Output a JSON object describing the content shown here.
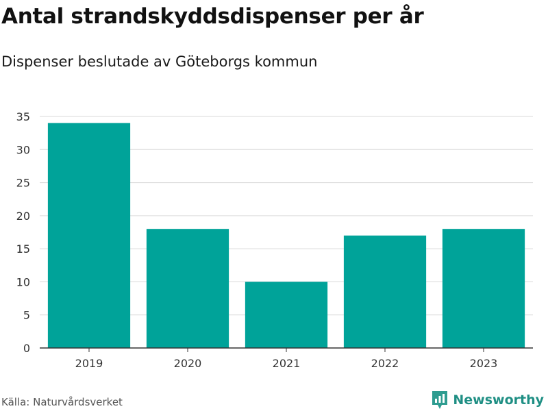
{
  "title": "Antal strandskyddsdispenser per år",
  "subtitle": "Dispenser beslutade av Göteborgs kommun",
  "source": "Källa: Naturvårdsverket",
  "brand": "Newsworthy",
  "colors": {
    "bar": "#00a399",
    "grid": "#d9d9d9",
    "axis": "#333333",
    "brand": "#1f8f84"
  },
  "chart_data": {
    "type": "bar",
    "title": "Antal strandskyddsdispenser per år",
    "subtitle": "Dispenser beslutade av Göteborgs kommun",
    "categories": [
      "2019",
      "2020",
      "2021",
      "2022",
      "2023"
    ],
    "values": [
      34,
      18,
      10,
      17,
      18
    ],
    "xlabel": "",
    "ylabel": "",
    "ylim": [
      0,
      35
    ],
    "yticks": [
      0,
      5,
      10,
      15,
      20,
      25,
      30,
      35
    ],
    "grid": true,
    "legend": "none"
  }
}
